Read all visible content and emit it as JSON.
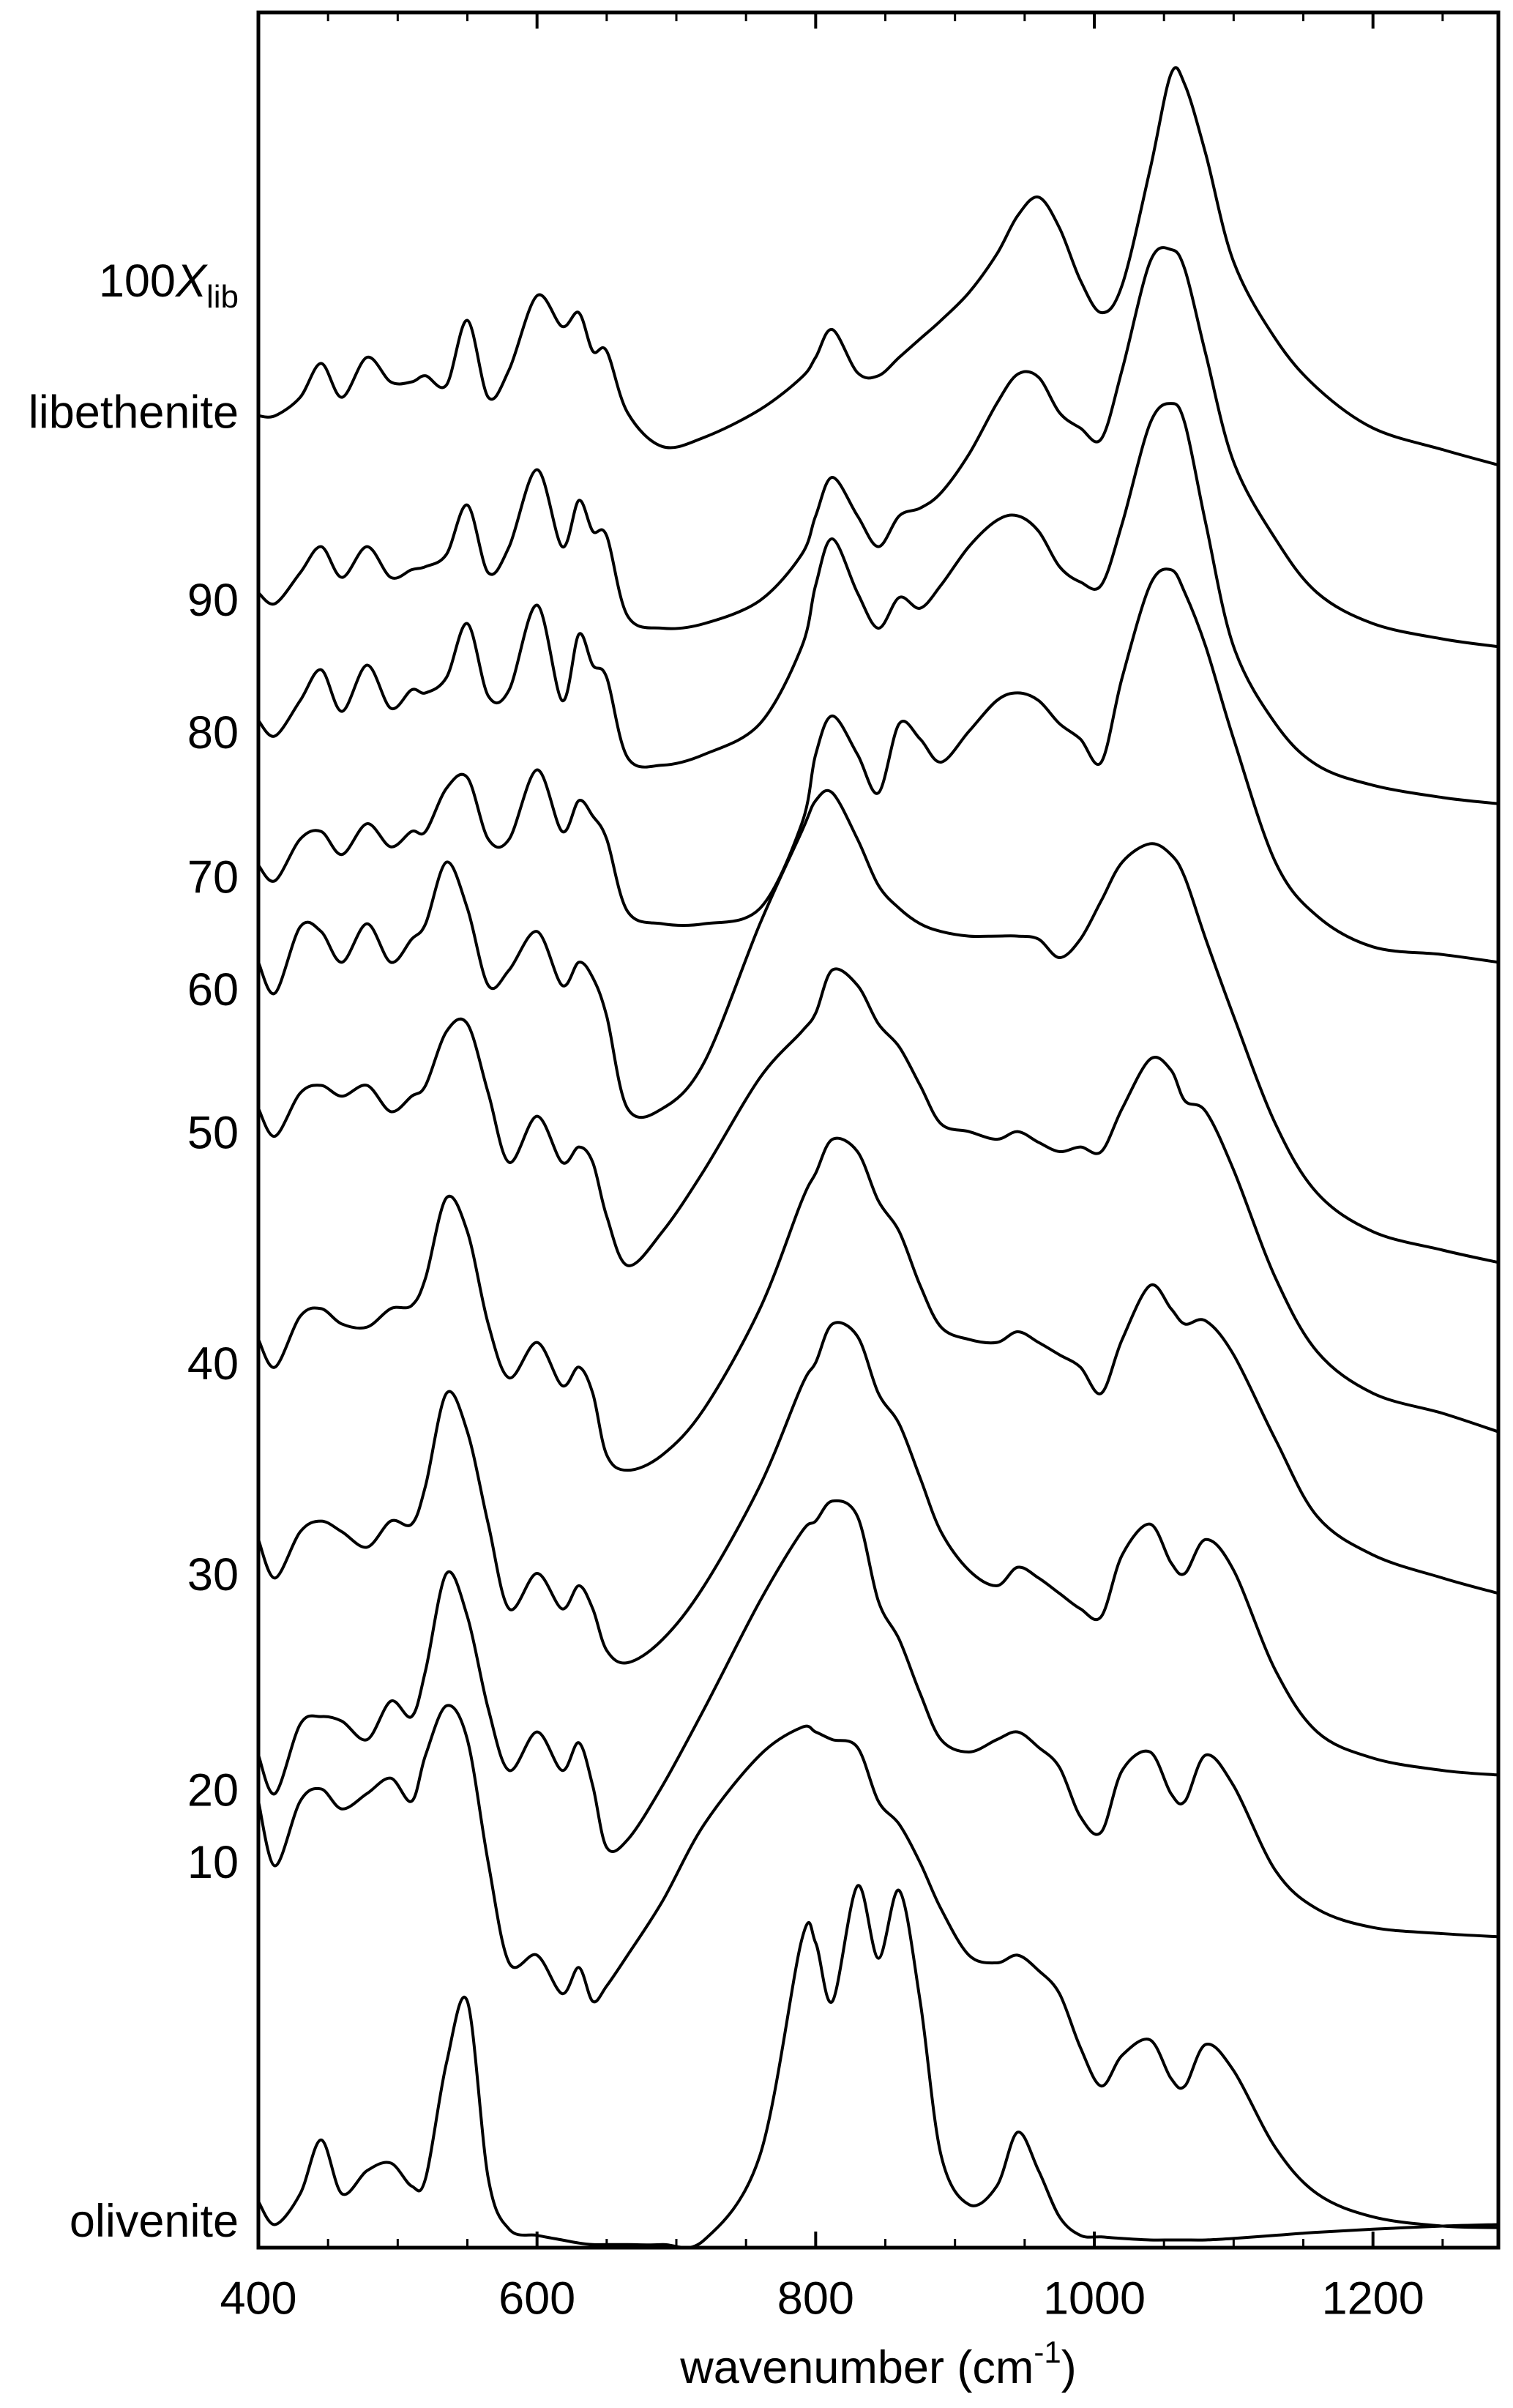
{
  "chart_data": {
    "type": "line",
    "y_header": {
      "prefix": "100",
      "italic": "X",
      "subscript": "lib"
    },
    "x_label": {
      "text": "wavenumber (cm",
      "superscript": "-1",
      "suffix": ")"
    },
    "xlim": [
      400,
      1290
    ],
    "xticks": [
      400,
      600,
      800,
      1000,
      1200
    ],
    "xminorticks": [
      450,
      500,
      550,
      650,
      700,
      750,
      850,
      900,
      950,
      1050,
      1100,
      1150,
      1250
    ],
    "ylim": [
      0,
      1452
    ],
    "color": "#000000",
    "x": [
      400,
      412,
      430,
      445,
      460,
      478,
      495,
      510,
      520,
      535,
      550,
      565,
      580,
      600,
      618,
      630,
      640,
      650,
      665,
      690,
      720,
      760,
      790,
      800,
      812,
      830,
      845,
      860,
      875,
      890,
      910,
      930,
      945,
      960,
      975,
      990,
      1005,
      1020,
      1040,
      1055,
      1065,
      1080,
      1100,
      1130,
      1160,
      1200,
      1250,
      1290
    ],
    "series": [
      {
        "name": "libethenite",
        "values": [
          1190,
          1190,
          1202,
          1224,
          1202,
          1228,
          1212,
          1212,
          1216,
          1210,
          1252,
          1202,
          1220,
          1268,
          1248,
          1257,
          1232,
          1232,
          1192,
          1170,
          1176,
          1194,
          1215,
          1228,
          1246,
          1218,
          1216,
          1228,
          1240,
          1252,
          1270,
          1295,
          1320,
          1332,
          1312,
          1278,
          1257,
          1275,
          1350,
          1412,
          1405,
          1360,
          1290,
          1240,
          1208,
          1182,
          1168,
          1158
        ]
      },
      {
        "name": "90",
        "values": [
          1075,
          1068,
          1088,
          1105,
          1085,
          1105,
          1085,
          1090,
          1092,
          1100,
          1132,
          1088,
          1105,
          1155,
          1105,
          1135,
          1115,
          1112,
          1060,
          1052,
          1055,
          1070,
          1100,
          1125,
          1150,
          1125,
          1105,
          1125,
          1130,
          1140,
          1165,
          1198,
          1217,
          1215,
          1192,
          1182,
          1175,
          1220,
          1290,
          1298,
          1285,
          1230,
          1160,
          1110,
          1075,
          1055,
          1045,
          1040
        ]
      },
      {
        "name": "80",
        "values": [
          992,
          982,
          1005,
          1025,
          998,
          1028,
          1000,
          1012,
          1010,
          1020,
          1055,
          1008,
          1012,
          1067,
          1005,
          1048,
          1028,
          1020,
          968,
          963,
          970,
          990,
          1040,
          1080,
          1110,
          1075,
          1052,
          1072,
          1065,
          1080,
          1105,
          1122,
          1125,
          1115,
          1092,
          1082,
          1080,
          1120,
          1185,
          1198,
          1185,
          1120,
          1040,
          990,
          963,
          950,
          942,
          938
        ]
      },
      {
        "name": "70",
        "values": [
          898,
          888,
          915,
          920,
          905,
          925,
          910,
          920,
          920,
          948,
          955,
          915,
          915,
          960,
          920,
          940,
          930,
          915,
          868,
          860,
          860,
          870,
          925,
          970,
          995,
          970,
          945,
          990,
          980,
          965,
          985,
          1005,
          1010,
          1005,
          990,
          980,
          965,
          1020,
          1080,
          1090,
          1075,
          1040,
          980,
          900,
          865,
          845,
          840,
          835
        ]
      },
      {
        "name": "60",
        "values": [
          835,
          815,
          858,
          855,
          835,
          860,
          835,
          850,
          860,
          900,
          870,
          820,
          830,
          855,
          820,
          835,
          825,
          800,
          740,
          740,
          770,
          860,
          920,
          940,
          945,
          915,
          885,
          870,
          860,
          855,
          852,
          852,
          852,
          850,
          838,
          850,
          875,
          900,
          912,
          905,
          890,
          850,
          800,
          730,
          685,
          660,
          648,
          640
        ]
      },
      {
        "name": "50",
        "values": [
          740,
          722,
          750,
          755,
          748,
          755,
          738,
          748,
          755,
          790,
          795,
          750,
          705,
          735,
          705,
          715,
          705,
          670,
          638,
          660,
          700,
          760,
          790,
          802,
          830,
          820,
          795,
          780,
          755,
          730,
          725,
          720,
          725,
          718,
          712,
          715,
          712,
          740,
          772,
          765,
          745,
          738,
          700,
          630,
          582,
          555,
          542,
          530
        ]
      },
      {
        "name": "40",
        "values": [
          590,
          572,
          605,
          610,
          600,
          598,
          610,
          612,
          630,
          682,
          660,
          600,
          565,
          588,
          560,
          572,
          555,
          515,
          505,
          515,
          545,
          610,
          680,
          698,
          720,
          712,
          680,
          660,
          625,
          598,
          590,
          588,
          595,
          588,
          580,
          572,
          555,
          590,
          625,
          610,
          600,
          602,
          580,
          525,
          475,
          450,
          435,
          425
        ]
      },
      {
        "name": "30",
        "values": [
          460,
          435,
          465,
          472,
          465,
          455,
          472,
          470,
          495,
          555,
          530,
          470,
          415,
          438,
          415,
          430,
          415,
          388,
          380,
          395,
          430,
          495,
          560,
          575,
          600,
          592,
          555,
          535,
          500,
          465,
          440,
          430,
          442,
          435,
          425,
          415,
          410,
          450,
          470,
          445,
          438,
          460,
          440,
          375,
          335,
          318,
          310,
          307
        ]
      },
      {
        "name": "20",
        "values": [
          320,
          295,
          340,
          345,
          342,
          330,
          355,
          345,
          375,
          438,
          410,
          350,
          310,
          335,
          310,
          328,
          300,
          260,
          265,
          300,
          350,
          420,
          465,
          472,
          485,
          475,
          420,
          395,
          360,
          330,
          322,
          330,
          335,
          325,
          312,
          280,
          270,
          310,
          322,
          295,
          290,
          320,
          300,
          245,
          220,
          208,
          204,
          202
        ]
      },
      {
        "name": "10",
        "values": [
          290,
          248,
          290,
          298,
          285,
          295,
          305,
          290,
          320,
          352,
          330,
          250,
          185,
          190,
          165,
          182,
          160,
          170,
          190,
          225,
          275,
          320,
          338,
          335,
          330,
          325,
          290,
          275,
          250,
          220,
          190,
          185,
          190,
          180,
          165,
          130,
          105,
          125,
          135,
          110,
          105,
          132,
          115,
          65,
          35,
          20,
          14,
          13
        ]
      },
      {
        "name": "olivenite",
        "values": [
          30,
          15,
          35,
          70,
          35,
          50,
          55,
          40,
          45,
          120,
          160,
          45,
          12,
          8,
          5,
          3,
          2,
          2,
          2,
          2,
          5,
          60,
          200,
          198,
          160,
          235,
          188,
          232,
          160,
          60,
          28,
          40,
          75,
          50,
          20,
          8,
          7,
          6,
          5,
          5,
          5,
          5,
          6,
          8,
          10,
          12,
          14,
          15
        ]
      }
    ]
  }
}
